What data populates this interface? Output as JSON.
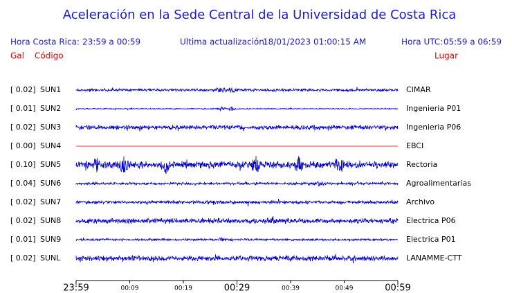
{
  "header": {
    "title": "Aceleración en la Sede Central de la Universidad de Costa Rica",
    "local_label": "Hora Costa Rica:",
    "local_range": "23:59 a 00:59",
    "update_label": "Ultima actualización:",
    "update_time": "18/01/2023 01:00:15 AM",
    "utc_label": "Hora UTC:",
    "utc_range": "05:59 a 06:59",
    "gal_heading": "Gal",
    "code_heading": "Código",
    "place_heading": "Lugar"
  },
  "stations": [
    {
      "gal": "[  0.02]",
      "code": "SUN1",
      "place": "CIMAR",
      "color": "#0000cc"
    },
    {
      "gal": "[  0.01]",
      "code": "SUN2",
      "place": "Ingenieria P01",
      "color": "#0000cc"
    },
    {
      "gal": "[  0.02]",
      "code": "SUN3",
      "place": "Ingenieria P06",
      "color": "#0000cc"
    },
    {
      "gal": "[  0.00]",
      "code": "SUN4",
      "place": "EBCI",
      "color": "#dd0000"
    },
    {
      "gal": "[  0.10]",
      "code": "SUN5",
      "place": "Rectoria",
      "color": "#0000cc"
    },
    {
      "gal": "[  0.04]",
      "code": "SUN6",
      "place": "Agroalimentarias",
      "color": "#0000cc"
    },
    {
      "gal": "[  0.02]",
      "code": "SUN7",
      "place": "Archivo",
      "color": "#0000cc"
    },
    {
      "gal": "[  0.02]",
      "code": "SUN8",
      "place": "Electrica P06",
      "color": "#0000cc"
    },
    {
      "gal": "[  0.01]",
      "code": "SUN9",
      "place": "Electrica P01",
      "color": "#0000cc"
    },
    {
      "gal": "[  0.02]",
      "code": "SUNL",
      "place": "LANAMME-CTT",
      "color": "#0000cc"
    }
  ],
  "time_ticks": [
    "23:59",
    "00:09",
    "00:19",
    "00:29",
    "00:39",
    "00:49",
    "00:59"
  ]
}
